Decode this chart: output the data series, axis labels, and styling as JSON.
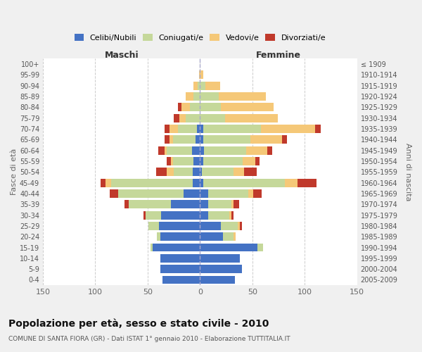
{
  "age_groups": [
    "0-4",
    "5-9",
    "10-14",
    "15-19",
    "20-24",
    "25-29",
    "30-34",
    "35-39",
    "40-44",
    "45-49",
    "50-54",
    "55-59",
    "60-64",
    "65-69",
    "70-74",
    "75-79",
    "80-84",
    "85-89",
    "90-94",
    "95-99",
    "100+"
  ],
  "birth_years": [
    "2005-2009",
    "2000-2004",
    "1995-1999",
    "1990-1994",
    "1985-1989",
    "1980-1984",
    "1975-1979",
    "1970-1974",
    "1965-1969",
    "1960-1964",
    "1955-1959",
    "1950-1954",
    "1945-1949",
    "1940-1944",
    "1935-1939",
    "1930-1934",
    "1925-1929",
    "1920-1924",
    "1915-1919",
    "1910-1914",
    "≤ 1909"
  ],
  "males": {
    "celibi": [
      36,
      38,
      38,
      45,
      38,
      39,
      37,
      28,
      16,
      7,
      7,
      6,
      8,
      4,
      3,
      0,
      0,
      0,
      0,
      0,
      0
    ],
    "coniugati": [
      0,
      0,
      0,
      2,
      3,
      10,
      15,
      40,
      62,
      78,
      18,
      20,
      24,
      22,
      18,
      14,
      10,
      6,
      2,
      0,
      0
    ],
    "vedovi": [
      0,
      0,
      0,
      0,
      0,
      0,
      0,
      0,
      0,
      5,
      7,
      2,
      2,
      3,
      8,
      6,
      8,
      8,
      4,
      1,
      0
    ],
    "divorziati": [
      0,
      0,
      0,
      0,
      0,
      0,
      2,
      4,
      8,
      5,
      10,
      4,
      6,
      5,
      5,
      5,
      3,
      0,
      0,
      0,
      0
    ]
  },
  "females": {
    "nubili": [
      33,
      40,
      38,
      55,
      22,
      20,
      8,
      8,
      8,
      3,
      2,
      3,
      4,
      3,
      3,
      0,
      0,
      0,
      0,
      0,
      0
    ],
    "coniugate": [
      0,
      0,
      0,
      5,
      10,
      16,
      20,
      22,
      38,
      78,
      30,
      38,
      40,
      45,
      55,
      24,
      20,
      18,
      5,
      0,
      0
    ],
    "vedove": [
      0,
      0,
      0,
      0,
      2,
      2,
      2,
      2,
      5,
      12,
      10,
      12,
      20,
      30,
      52,
      50,
      50,
      45,
      14,
      3,
      0
    ],
    "divorziate": [
      0,
      0,
      0,
      0,
      0,
      2,
      2,
      5,
      8,
      18,
      12,
      4,
      5,
      5,
      5,
      0,
      0,
      0,
      0,
      0,
      0
    ]
  },
  "colors": {
    "celibi": "#4472C4",
    "coniugati": "#C5D89A",
    "vedovi": "#F5C878",
    "divorziati": "#C0392B"
  },
  "xlim": 150,
  "title": "Popolazione per età, sesso e stato civile - 2010",
  "subtitle": "COMUNE DI SANTA FIORA (GR) - Dati ISTAT 1° gennaio 2010 - Elaborazione TUTTITALIA.IT",
  "ylabel_left": "Fasce di età",
  "ylabel_right": "Anni di nascita",
  "xlabel_left": "Maschi",
  "xlabel_right": "Femmine",
  "bg_color": "#f0f0f0",
  "plot_bg_color": "#ffffff"
}
